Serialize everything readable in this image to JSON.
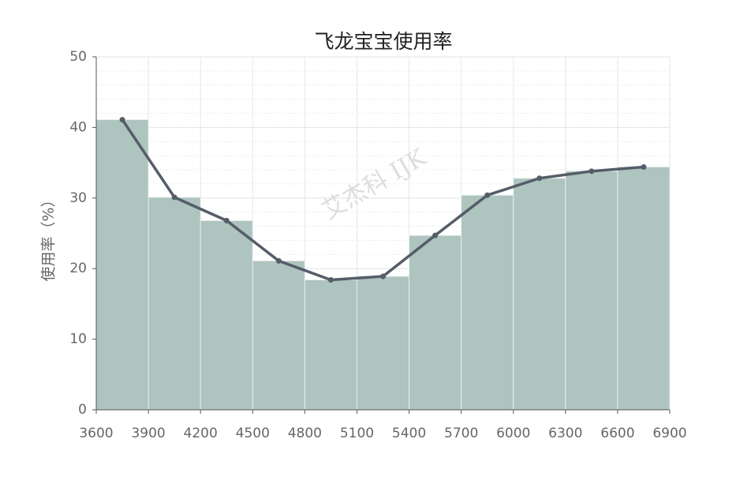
{
  "chart_data": {
    "type": "histogram",
    "title": "飞龙宝宝使用率",
    "ylabel": "使用率（%）",
    "watermark": "艾杰科 IJK",
    "bins": [
      3600,
      3900,
      4200,
      4500,
      4800,
      5100,
      5400,
      5700,
      6000,
      6300,
      6600,
      6900
    ],
    "values": [
      41.1,
      30.1,
      26.8,
      21.1,
      18.4,
      18.9,
      24.7,
      30.4,
      32.8,
      33.8,
      34.4
    ],
    "color": "#adc4bf",
    "line": {
      "color": "#555d69",
      "x": [
        3750,
        4050,
        4350,
        4650,
        4950,
        5250,
        5550,
        5850,
        6150,
        6450,
        6750
      ],
      "values": [
        41.1,
        30.1,
        26.8,
        21.1,
        18.4,
        18.9,
        24.7,
        30.4,
        32.8,
        33.8,
        34.4
      ]
    },
    "xlim": [
      3600,
      6900
    ],
    "xticks": [
      3600,
      3900,
      4200,
      4500,
      4800,
      5100,
      5400,
      5700,
      6000,
      6300,
      6600,
      6900
    ],
    "ylim": [
      0,
      50
    ],
    "yticks": [
      0,
      10,
      20,
      30,
      40,
      50
    ],
    "grid": true
  }
}
